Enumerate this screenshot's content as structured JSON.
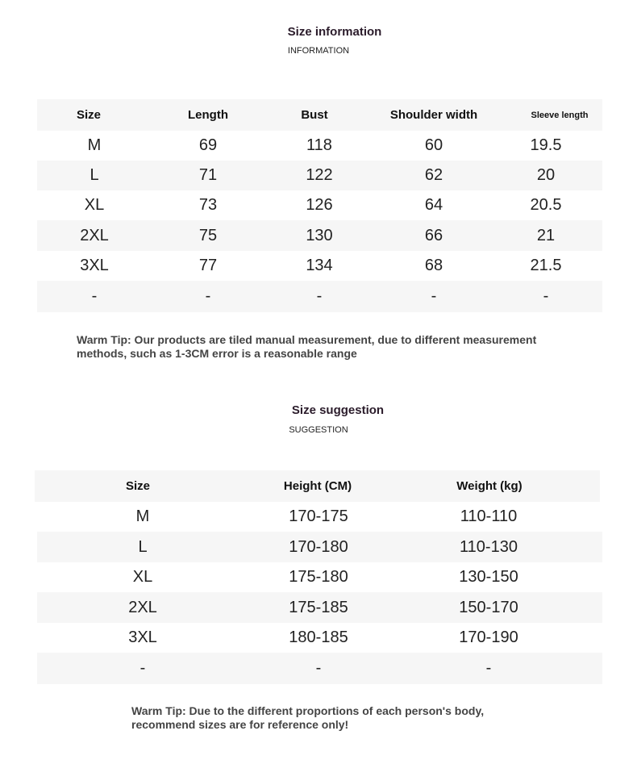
{
  "info": {
    "title": "Size information",
    "subtitle": "INFORMATION",
    "headers": [
      "Size",
      "Length",
      "Bust",
      "Shoulder width",
      "Sleeve length"
    ],
    "rows": [
      [
        "M",
        "69",
        "118",
        "60",
        "19.5"
      ],
      [
        "L",
        "71",
        "122",
        "62",
        "20"
      ],
      [
        "XL",
        "73",
        "126",
        "64",
        "20.5"
      ],
      [
        "2XL",
        "75",
        "130",
        "66",
        "21"
      ],
      [
        "3XL",
        "77",
        "134",
        "68",
        "21.5"
      ],
      [
        "-",
        "-",
        "-",
        "-",
        "-"
      ]
    ],
    "tip_line1": "Warm Tip: Our products are tiled manual measurement, due to different measurement",
    "tip_line2": "methods, such as 1-3CM error is a reasonable range"
  },
  "suggestion": {
    "title": "Size suggestion",
    "subtitle": "SUGGESTION",
    "headers": [
      "Size",
      "Height (CM)",
      "Weight (kg)"
    ],
    "rows": [
      [
        "M",
        "170-175",
        "110-110"
      ],
      [
        "L",
        "170-180",
        "110-130"
      ],
      [
        "XL",
        "175-180",
        "130-150"
      ],
      [
        "2XL",
        "175-185",
        "150-170"
      ],
      [
        "3XL",
        "180-185",
        "170-190"
      ],
      [
        "-",
        "-",
        "-"
      ]
    ],
    "tip_line1": "Warm Tip: Due to the different proportions of each person's body,",
    "tip_line2": "recommend sizes are for reference only!"
  }
}
